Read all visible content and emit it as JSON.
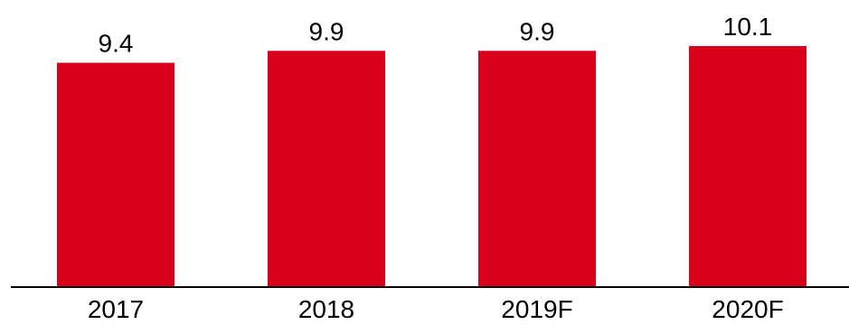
{
  "chart_data": {
    "type": "bar",
    "categories": [
      "2017",
      "2018",
      "2019F",
      "2020F"
    ],
    "values": [
      9.4,
      9.9,
      9.9,
      10.1
    ],
    "data_labels": [
      "9.4",
      "9.9",
      "9.9",
      "10.1"
    ],
    "ylim": [
      0,
      10.1
    ],
    "grid": false,
    "legend": "none",
    "bar_color": "#d9001b"
  }
}
